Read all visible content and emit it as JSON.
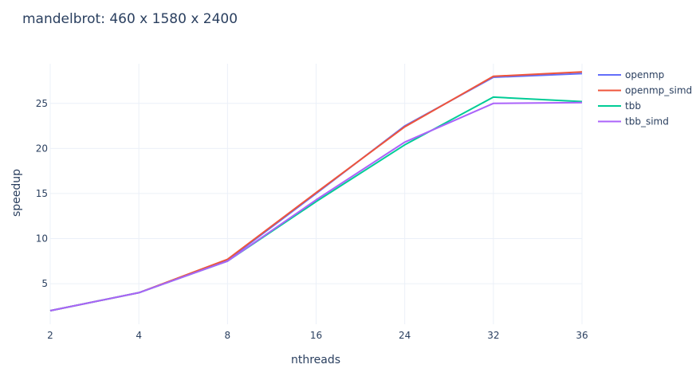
{
  "chart_data": {
    "type": "line",
    "title": "mandelbrot: 460 x 1580 x 2400",
    "xlabel": "nthreads",
    "ylabel": "speedup",
    "categories": [
      "2",
      "4",
      "8",
      "16",
      "24",
      "32",
      "36"
    ],
    "y_ticks": [
      5,
      10,
      15,
      20,
      25
    ],
    "ylim": [
      0.5,
      29.4
    ],
    "grid": true,
    "legend_position": "top-right",
    "series": [
      {
        "name": "openmp",
        "color": "#636efa",
        "values": [
          2.0,
          4.0,
          7.6,
          15.0,
          22.5,
          27.9,
          28.3
        ]
      },
      {
        "name": "openmp_simd",
        "color": "#ef553b",
        "values": [
          2.0,
          4.0,
          7.7,
          15.1,
          22.4,
          28.0,
          28.5
        ]
      },
      {
        "name": "tbb",
        "color": "#00cc96",
        "values": [
          2.0,
          4.0,
          7.5,
          14.1,
          20.4,
          25.7,
          25.2
        ]
      },
      {
        "name": "tbb_simd",
        "color": "#ab63fa",
        "values": [
          2.0,
          4.0,
          7.5,
          14.3,
          20.7,
          25.0,
          25.1
        ]
      }
    ]
  }
}
